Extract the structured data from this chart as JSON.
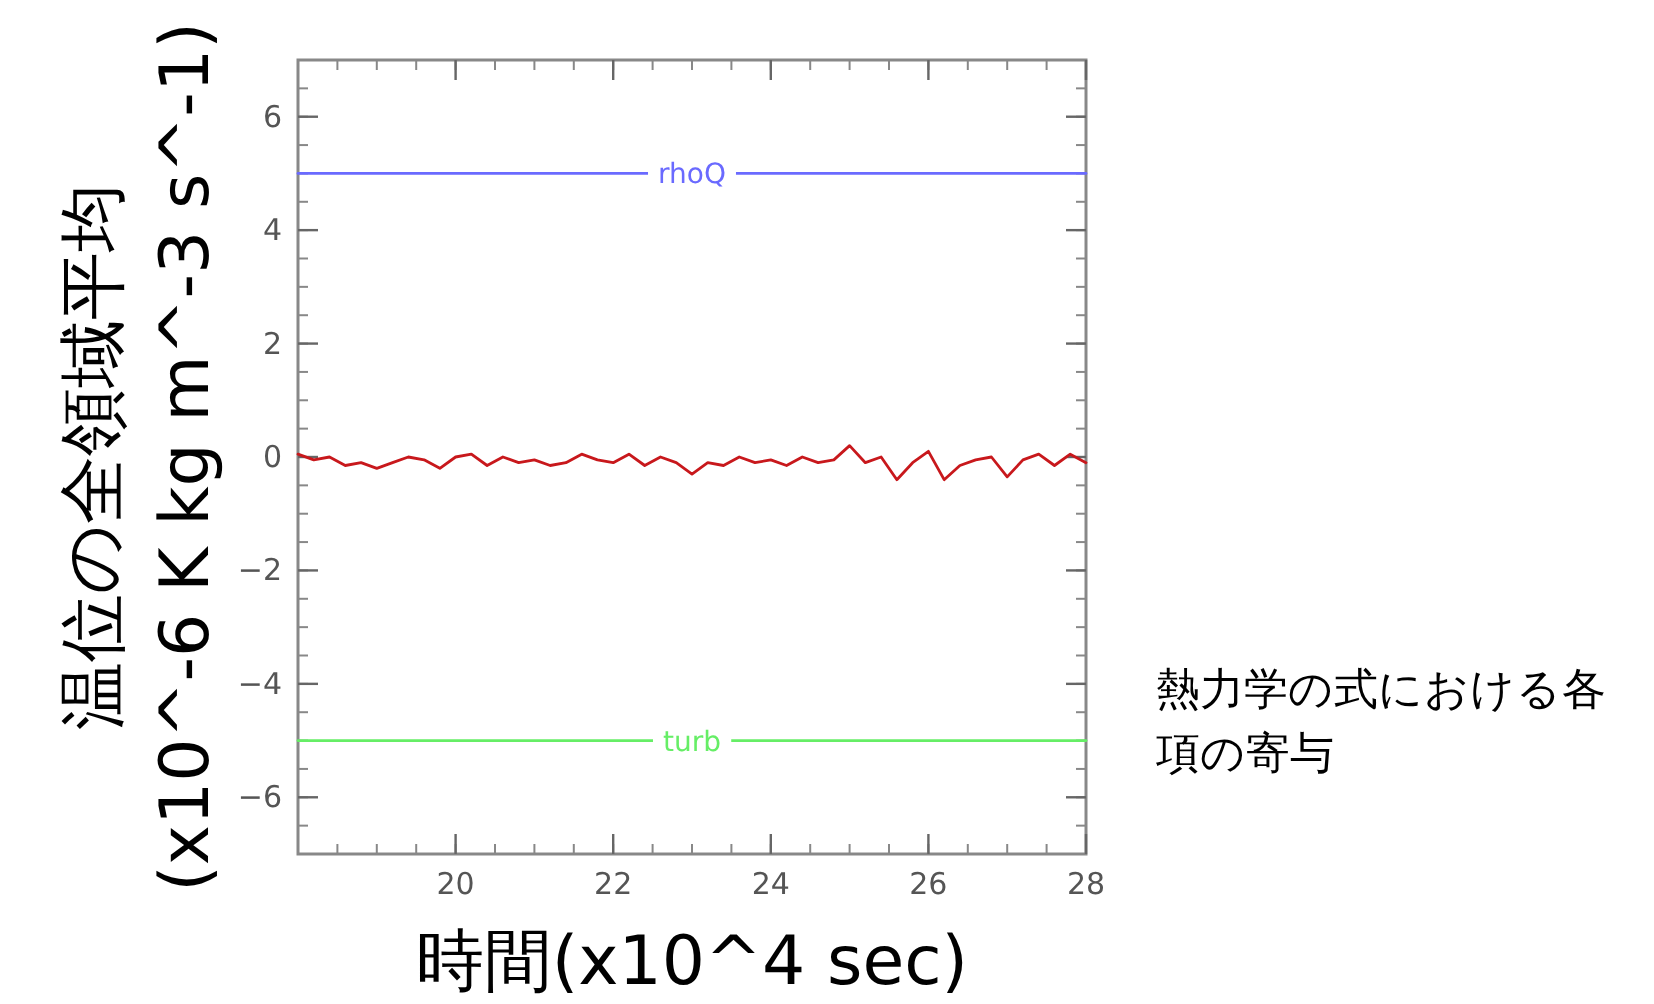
{
  "chart_data": {
    "type": "line",
    "xlabel": "時間(x10^4 sec)",
    "ylabel": "温位の全領域平均\n(x10^-6 K kg m^-3 s^-1)",
    "xlim": [
      18,
      28
    ],
    "ylim": [
      -7,
      7
    ],
    "xticks": [
      20,
      22,
      24,
      26,
      28
    ],
    "yticks": [
      -6,
      -4,
      -2,
      0,
      2,
      4,
      6
    ],
    "grid": false,
    "annotations": [
      "熱力学の式における各項の寄与"
    ],
    "series": [
      {
        "name": "rhoQ",
        "color": "#6a6aff",
        "x": [
          18,
          28
        ],
        "values": [
          5,
          5
        ]
      },
      {
        "name": "turb",
        "color": "#66ee66",
        "x": [
          18,
          28
        ],
        "values": [
          -5,
          -5
        ]
      },
      {
        "color": "#c8181c",
        "x": [
          18.0,
          18.2,
          18.4,
          18.6,
          18.8,
          19.0,
          19.2,
          19.4,
          19.6,
          19.8,
          20.0,
          20.2,
          20.4,
          20.6,
          20.8,
          21.0,
          21.2,
          21.4,
          21.6,
          21.8,
          22.0,
          22.2,
          22.4,
          22.6,
          22.8,
          23.0,
          23.2,
          23.4,
          23.6,
          23.8,
          24.0,
          24.2,
          24.4,
          24.6,
          24.8,
          25.0,
          25.2,
          25.4,
          25.6,
          25.8,
          26.0,
          26.2,
          26.4,
          26.6,
          26.8,
          27.0,
          27.2,
          27.4,
          27.6,
          27.8,
          28.0
        ],
        "values": [
          0.05,
          -0.05,
          0.0,
          -0.15,
          -0.1,
          -0.2,
          -0.1,
          0.0,
          -0.05,
          -0.2,
          0.0,
          0.05,
          -0.15,
          0.0,
          -0.1,
          -0.05,
          -0.15,
          -0.1,
          0.05,
          -0.05,
          -0.1,
          0.05,
          -0.15,
          0.0,
          -0.1,
          -0.3,
          -0.1,
          -0.15,
          0.0,
          -0.1,
          -0.05,
          -0.15,
          0.0,
          -0.1,
          -0.05,
          0.2,
          -0.1,
          0.0,
          -0.4,
          -0.1,
          0.1,
          -0.4,
          -0.15,
          -0.05,
          0.0,
          -0.35,
          -0.05,
          0.05,
          -0.15,
          0.05,
          -0.1
        ]
      }
    ]
  }
}
